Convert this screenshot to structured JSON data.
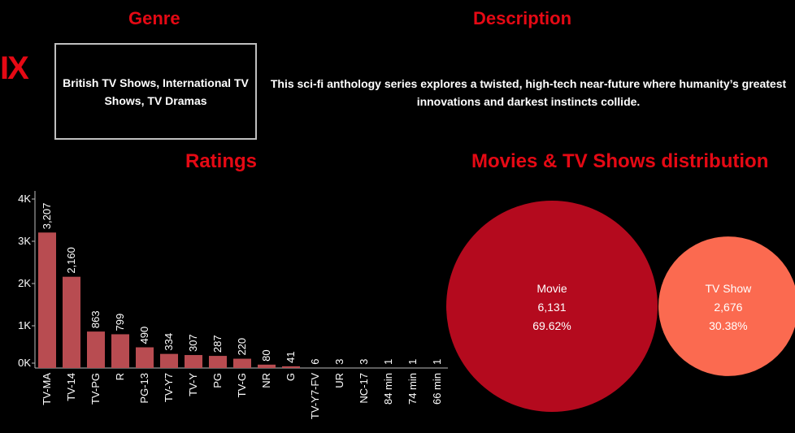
{
  "logo_fragment": "IX",
  "genre": {
    "title": "Genre",
    "text": "British TV Shows, International TV Shows, TV Dramas"
  },
  "description": {
    "title": "Description",
    "text": "This sci-fi anthology series explores a twisted, high-tech near-future where humanity’s greatest innovations and darkest instincts collide."
  },
  "ratings": {
    "title": "Ratings"
  },
  "distribution": {
    "title": "Movies & TV Shows distribution"
  },
  "colors": {
    "accent": "#e50914",
    "bar": "#b84c51",
    "movie_bubble": "#b40a1e",
    "tvshow_bubble": "#fb6a50"
  },
  "chart_data": [
    {
      "type": "bar",
      "title": "Ratings",
      "categories": [
        "TV-MA",
        "TV-14",
        "TV-PG",
        "R",
        "PG-13",
        "TV-Y7",
        "TV-Y",
        "PG",
        "TV-G",
        "NR",
        "G",
        "TV-Y7-FV",
        "UR",
        "NC-17",
        "84 min",
        "74 min",
        "66 min"
      ],
      "values": [
        3207,
        2160,
        863,
        799,
        490,
        334,
        307,
        287,
        220,
        80,
        41,
        6,
        3,
        3,
        1,
        1,
        1
      ],
      "value_labels": [
        "3,207",
        "2,160",
        "863",
        "799",
        "490",
        "334",
        "307",
        "287",
        "220",
        "80",
        "41",
        "6",
        "3",
        "3",
        "1",
        "1",
        "1"
      ],
      "yticks": [
        "0K",
        "1K",
        "2K",
        "3K",
        "4K"
      ],
      "ylim": [
        0,
        4000
      ],
      "grid": false
    },
    {
      "type": "bubble",
      "title": "Movies & TV Shows distribution",
      "items": [
        {
          "label": "Movie",
          "value": 6131,
          "value_label": "6,131",
          "percent": "69.62%"
        },
        {
          "label": "TV Show",
          "value": 2676,
          "value_label": "2,676",
          "percent": "30.38%"
        }
      ]
    }
  ]
}
